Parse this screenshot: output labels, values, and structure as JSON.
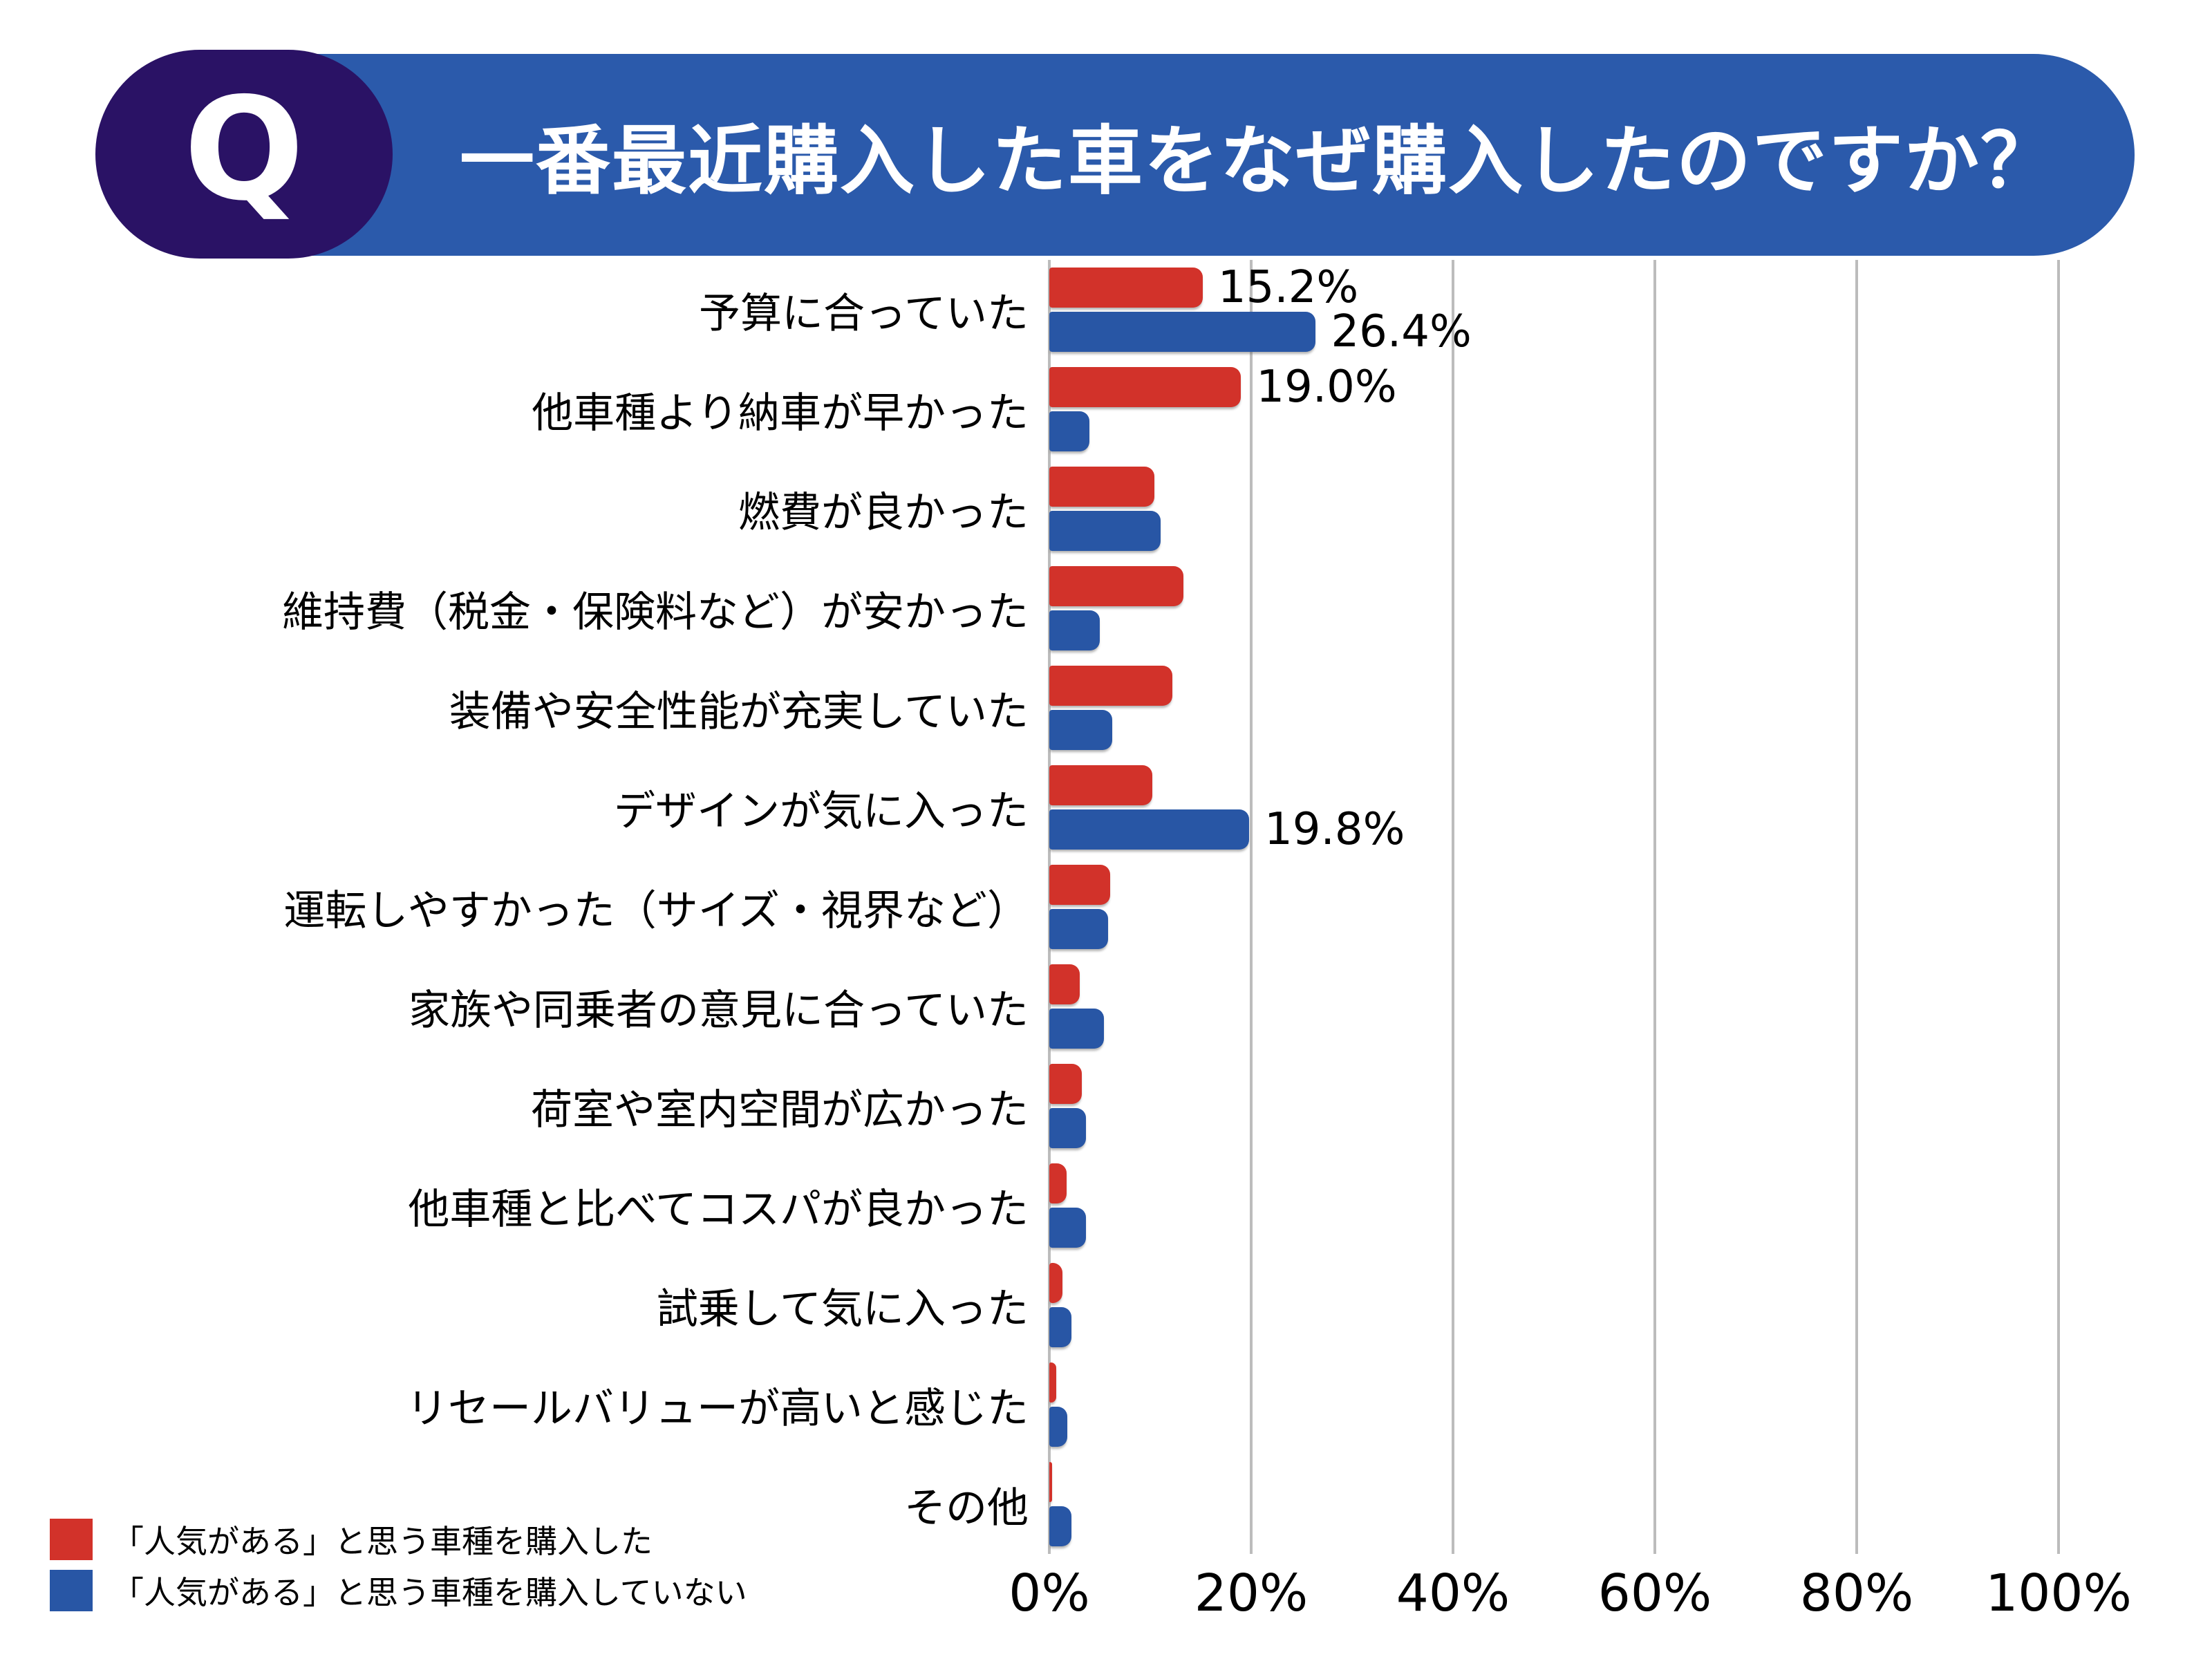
{
  "header": {
    "q_label": "Q",
    "title": "一番最近購入した車をなぜ購入したのですか？"
  },
  "colors": {
    "header_bg": "#2b5aab",
    "q_badge_bg": "#2a1265",
    "series_red": "#d2322a",
    "series_blue": "#2856a5",
    "gridline": "#bcbcbc",
    "label_text": "#000000"
  },
  "legend": {
    "items": [
      {
        "label": "「人気がある」と思う車種を購入した",
        "color_key": "series_red"
      },
      {
        "label": "「人気がある」と思う車種を購入していない",
        "color_key": "series_blue"
      }
    ]
  },
  "chart_data": {
    "type": "bar",
    "orientation": "horizontal",
    "title": "一番最近購入した車をなぜ購入したのですか？",
    "xlim": [
      0,
      100
    ],
    "grid": true,
    "legend_position": "bottom-left",
    "x_ticks": [
      {
        "value": 0,
        "label": "0%"
      },
      {
        "value": 20,
        "label": "20%"
      },
      {
        "value": 40,
        "label": "40%"
      },
      {
        "value": 60,
        "label": "60%"
      },
      {
        "value": 80,
        "label": "80%"
      },
      {
        "value": 100,
        "label": "100%"
      }
    ],
    "categories": [
      "予算に合っていた",
      "他車種より納車が早かった",
      "燃費が良かった",
      "維持費（税金・保険料など）が安かった",
      "装備や安全性能が充実していた",
      "デザインが気に入った",
      "運転しやすかった（サイズ・視界など）",
      "家族や同乗者の意見に合っていた",
      "荷室や室内空間が広かった",
      "他車種と比べてコスパが良かった",
      "試乗して気に入った",
      "リセールバリューが高いと感じた",
      "その他"
    ],
    "series": [
      {
        "name": "「人気がある」と思う車種を購入した",
        "color_key": "series_red",
        "values": [
          15.2,
          19.0,
          10.4,
          13.3,
          12.2,
          10.2,
          6.0,
          3.0,
          3.2,
          1.7,
          1.3,
          0.7,
          0.2
        ],
        "data_labels": [
          "15.2%",
          "19.0%",
          null,
          null,
          null,
          null,
          null,
          null,
          null,
          null,
          null,
          null,
          null
        ]
      },
      {
        "name": "「人気がある」と思う車種を購入していない",
        "color_key": "series_blue",
        "values": [
          26.4,
          4.0,
          11.0,
          5.0,
          6.2,
          19.8,
          5.8,
          5.4,
          3.6,
          3.6,
          2.2,
          1.8,
          2.2
        ],
        "data_labels": [
          "26.4%",
          null,
          null,
          null,
          null,
          "19.8%",
          null,
          null,
          null,
          null,
          null,
          null,
          null
        ]
      }
    ]
  }
}
